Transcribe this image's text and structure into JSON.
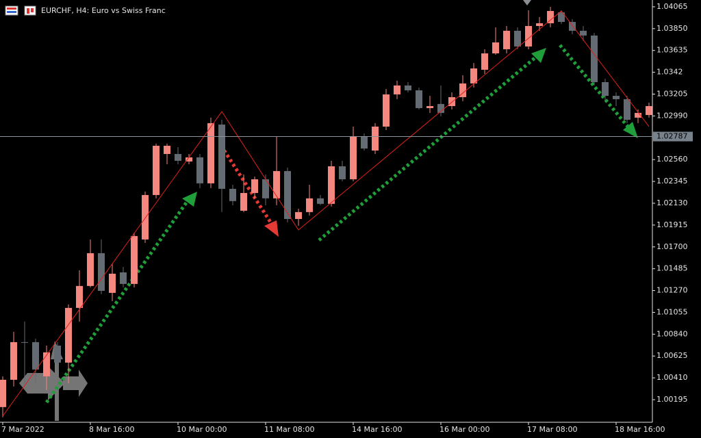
{
  "chart_data": {
    "type": "candlestick",
    "title": "EURCHF, H4:  Euro vs Swiss Franc",
    "bull_color": "#f4877f",
    "bear_color": "#646b73",
    "categories": [
      "7 Mar 2022",
      null,
      null,
      null,
      null,
      null,
      null,
      null,
      "8 Mar 16:00",
      null,
      null,
      null,
      null,
      null,
      null,
      null,
      "10 Mar 00:00",
      null,
      null,
      null,
      null,
      null,
      null,
      null,
      "11 Mar 08:00",
      null,
      null,
      null,
      null,
      null,
      null,
      null,
      "14 Mar 16:00",
      null,
      null,
      null,
      null,
      null,
      null,
      null,
      "16 Mar 00:00",
      null,
      null,
      null,
      null,
      null,
      null,
      null,
      "17 Mar 08:00",
      null,
      null,
      null,
      null,
      null,
      null,
      null,
      "18 Mar 16:00",
      null,
      null,
      null
    ],
    "open": [
      1.00122,
      1.00391,
      1.00762,
      1.00762,
      1.00425,
      1.00728,
      1.0056,
      1.01099,
      1.01315,
      1.01638,
      1.01247,
      1.01449,
      1.01335,
      1.01773,
      1.02211,
      1.02615,
      1.02615,
      1.02541,
      1.02582,
      1.02326,
      1.02905,
      1.02272,
      1.02056,
      1.02231,
      1.02366,
      1.02178,
      1.02447,
      1.01975,
      1.02043,
      1.02178,
      1.02124,
      1.02494,
      1.02366,
      1.02784,
      1.02649,
      1.02885,
      1.03202,
      1.0329,
      1.03242,
      1.03067,
      1.03108,
      1.03087,
      1.03175,
      1.0331,
      1.03445,
      1.03606,
      1.03647,
      1.03829,
      1.03674,
      1.03876,
      1.03903,
      1.04011,
      1.03916,
      1.03829,
      1.03782,
      1.03323,
      1.03188,
      1.03155,
      1.02973,
      1.02999
    ],
    "high": [
      1.00425,
      1.00863,
      1.00964,
      1.00796,
      1.00728,
      1.00762,
      1.01133,
      1.01469,
      1.01773,
      1.01773,
      1.01537,
      1.01503,
      1.0184,
      1.02245,
      1.02717,
      1.02717,
      1.02683,
      1.02615,
      1.02615,
      1.02973,
      1.02952,
      1.02312,
      1.02413,
      1.02393,
      1.02413,
      1.02784,
      1.02481,
      1.02076,
      1.02312,
      1.02211,
      1.02548,
      1.02548,
      1.02885,
      1.02818,
      1.02919,
      1.03256,
      1.03337,
      1.03323,
      1.03269,
      1.03188,
      1.0329,
      1.03222,
      1.03391,
      1.03512,
      1.03647,
      1.03862,
      1.03876,
      1.03862,
      1.04031,
      1.03964,
      1.04065,
      1.04031,
      1.03943,
      1.03876,
      1.03808,
      1.03357,
      1.03222,
      1.03188,
      1.03054,
      1.03121
    ],
    "low": [
      1.00021,
      1.00324,
      1.00358,
      1.00358,
      1.0029,
      1.00492,
      1.00358,
      1.00964,
      1.01301,
      1.01234,
      1.01166,
      1.01301,
      1.01301,
      1.01739,
      1.02178,
      1.02514,
      1.02514,
      1.02514,
      1.02279,
      1.02279,
      1.02043,
      1.0211,
      1.02043,
      1.02178,
      1.0211,
      1.0211,
      1.01942,
      1.01908,
      1.02009,
      1.0211,
      1.02097,
      1.02346,
      1.02346,
      1.02649,
      1.02615,
      1.02851,
      1.03155,
      1.03222,
      1.03054,
      1.0302,
      1.02986,
      1.03054,
      1.03135,
      1.03269,
      1.03404,
      1.03593,
      1.03606,
      1.03647,
      1.03647,
      1.03829,
      1.03862,
      1.03896,
      1.03795,
      1.03728,
      1.0329,
      1.03135,
      1.03087,
      1.02919,
      1.02919,
      1.02973
    ],
    "close": [
      1.00391,
      1.00762,
      1.00755,
      1.00492,
      1.00661,
      1.0056,
      1.01099,
      1.01315,
      1.01638,
      1.01267,
      1.01436,
      1.01335,
      1.01807,
      1.02211,
      1.02696,
      1.02696,
      1.02548,
      1.02582,
      1.02326,
      1.02919,
      1.02272,
      1.02151,
      1.02231,
      1.02366,
      1.02178,
      1.02447,
      1.01975,
      1.02043,
      1.02178,
      1.02124,
      1.02494,
      1.02366,
      1.02784,
      1.02669,
      1.02885,
      1.03202,
      1.0329,
      1.03242,
      1.03067,
      1.03087,
      1.0302,
      1.03175,
      1.0331,
      1.03458,
      1.03606,
      1.03714,
      1.03829,
      1.03674,
      1.03876,
      1.03903,
      1.04024,
      1.03916,
      1.03829,
      1.03782,
      1.03323,
      1.03188,
      1.03155,
      1.02952,
      1.0302,
      1.03087
    ],
    "zigzag": {
      "color": "#e0201c",
      "x": [
        0,
        20,
        27,
        51,
        59
      ],
      "values": [
        1.00034,
        1.03033,
        1.01867,
        1.04024,
        1.02885
      ]
    },
    "last_price": 1.02787,
    "ylim": [
      0.99986,
      1.04132
    ],
    "yticks": [
      1.04065,
      {
        "value": 1.0385,
        "label": "1.03850"
      },
      1.03635,
      1.0342,
      1.03205,
      {
        "value": 1.0299,
        "label": "1.02990"
      },
      {
        "value": 1.0256,
        "label": "1.02560"
      },
      1.02345,
      {
        "value": 1.0213,
        "label": "1.02130"
      },
      1.01915,
      {
        "value": 1.017,
        "label": "1.01700"
      },
      1.01485,
      {
        "value": 1.0127,
        "label": "1.01270"
      },
      1.01055,
      {
        "value": 1.0084,
        "label": "1.00840"
      },
      1.00625,
      {
        "value": 1.0041,
        "label": "1.00410"
      },
      1.00195
    ]
  }
}
